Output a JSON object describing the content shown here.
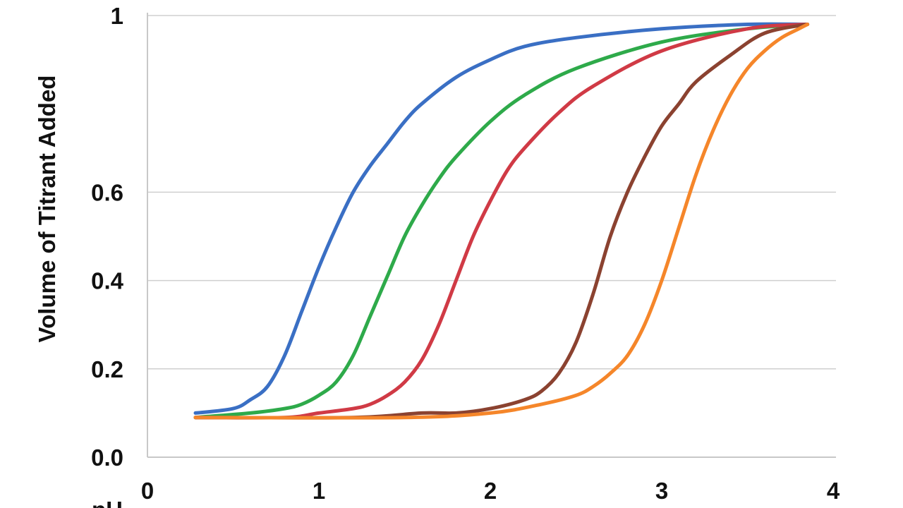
{
  "chart_data": {
    "type": "line",
    "title": "",
    "xlabel": "pH",
    "ylabel": "Volume of Titrant Added",
    "xlim": [
      0,
      4
    ],
    "ylim": [
      0,
      1
    ],
    "x_ticks": [
      "0",
      "1",
      "2",
      "3",
      "4"
    ],
    "y_ticks": [
      "0.0",
      "0.2",
      "0.4",
      "0.6",
      "1"
    ],
    "y_tick_values": [
      0,
      0.2,
      0.4,
      0.6,
      1.0
    ],
    "grid": true,
    "legend": "none",
    "series": [
      {
        "color": "#3a6fc4",
        "x": [
          0.28,
          0.5,
          0.6,
          0.7,
          0.8,
          0.9,
          1.0,
          1.1,
          1.2,
          1.3,
          1.4,
          1.5,
          1.6,
          1.8,
          2.0,
          2.2,
          2.5,
          3.0,
          3.5,
          3.85
        ],
        "y": [
          0.1,
          0.11,
          0.13,
          0.16,
          0.23,
          0.33,
          0.43,
          0.52,
          0.6,
          0.66,
          0.71,
          0.76,
          0.8,
          0.86,
          0.9,
          0.93,
          0.95,
          0.97,
          0.98,
          0.98
        ]
      },
      {
        "color": "#2eaa4a",
        "x": [
          0.28,
          0.6,
          0.8,
          0.9,
          1.0,
          1.1,
          1.2,
          1.3,
          1.4,
          1.5,
          1.6,
          1.7,
          1.8,
          2.0,
          2.2,
          2.5,
          3.0,
          3.5,
          3.85
        ],
        "y": [
          0.09,
          0.1,
          0.11,
          0.12,
          0.14,
          0.17,
          0.23,
          0.32,
          0.41,
          0.5,
          0.57,
          0.63,
          0.68,
          0.76,
          0.82,
          0.88,
          0.94,
          0.97,
          0.98
        ]
      },
      {
        "color": "#d03a45",
        "x": [
          0.28,
          0.8,
          1.0,
          1.2,
          1.3,
          1.4,
          1.5,
          1.6,
          1.7,
          1.8,
          1.9,
          2.0,
          2.1,
          2.2,
          2.4,
          2.6,
          3.0,
          3.5,
          3.85
        ],
        "y": [
          0.09,
          0.09,
          0.1,
          0.11,
          0.12,
          0.14,
          0.17,
          0.22,
          0.3,
          0.4,
          0.5,
          0.58,
          0.65,
          0.7,
          0.78,
          0.84,
          0.92,
          0.97,
          0.98
        ]
      },
      {
        "color": "#8b4230",
        "x": [
          0.28,
          1.2,
          1.6,
          1.8,
          2.0,
          2.2,
          2.3,
          2.4,
          2.5,
          2.6,
          2.7,
          2.8,
          2.9,
          3.0,
          3.1,
          3.2,
          3.4,
          3.6,
          3.85
        ],
        "y": [
          0.09,
          0.09,
          0.1,
          0.1,
          0.11,
          0.13,
          0.15,
          0.19,
          0.26,
          0.37,
          0.5,
          0.6,
          0.68,
          0.75,
          0.8,
          0.85,
          0.91,
          0.96,
          0.98
        ]
      },
      {
        "color": "#f5862a",
        "x": [
          0.28,
          1.5,
          2.0,
          2.3,
          2.5,
          2.6,
          2.7,
          2.8,
          2.9,
          3.0,
          3.1,
          3.2,
          3.3,
          3.4,
          3.5,
          3.6,
          3.7,
          3.8,
          3.85
        ],
        "y": [
          0.09,
          0.09,
          0.1,
          0.12,
          0.14,
          0.16,
          0.19,
          0.23,
          0.3,
          0.4,
          0.52,
          0.64,
          0.74,
          0.82,
          0.88,
          0.92,
          0.95,
          0.97,
          0.98
        ]
      }
    ]
  }
}
